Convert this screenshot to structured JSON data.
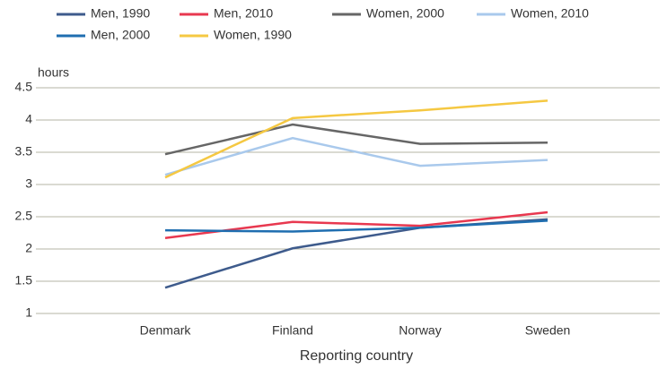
{
  "chart_data": {
    "type": "line",
    "y_axis_label": "hours",
    "x_axis_label": "Reporting country",
    "categories": [
      "Denmark",
      "Finland",
      "Norway",
      "Sweden"
    ],
    "series": [
      {
        "name": "Men, 1990",
        "color": "#3e5b8c",
        "values": [
          1.4,
          2.01,
          2.33,
          2.46
        ]
      },
      {
        "name": "Men, 2010",
        "color": "#e8384f",
        "values": [
          2.17,
          2.42,
          2.36,
          2.57
        ]
      },
      {
        "name": "Women, 2000",
        "color": "#666666",
        "values": [
          3.47,
          3.93,
          3.63,
          3.65
        ]
      },
      {
        "name": "Women, 2010",
        "color": "#a9c9ec",
        "values": [
          3.15,
          3.72,
          3.29,
          3.38
        ]
      },
      {
        "name": "Men, 2000",
        "color": "#1f6eb0",
        "values": [
          2.29,
          2.27,
          2.33,
          2.44
        ]
      },
      {
        "name": "Women, 1990",
        "color": "#f5c842",
        "values": [
          3.11,
          4.03,
          4.15,
          4.3
        ]
      }
    ],
    "ylim": [
      1,
      4.5
    ],
    "yticks": [
      1,
      1.5,
      2,
      2.5,
      3,
      3.5,
      4,
      4.5
    ],
    "grid": true,
    "legend": "top"
  }
}
